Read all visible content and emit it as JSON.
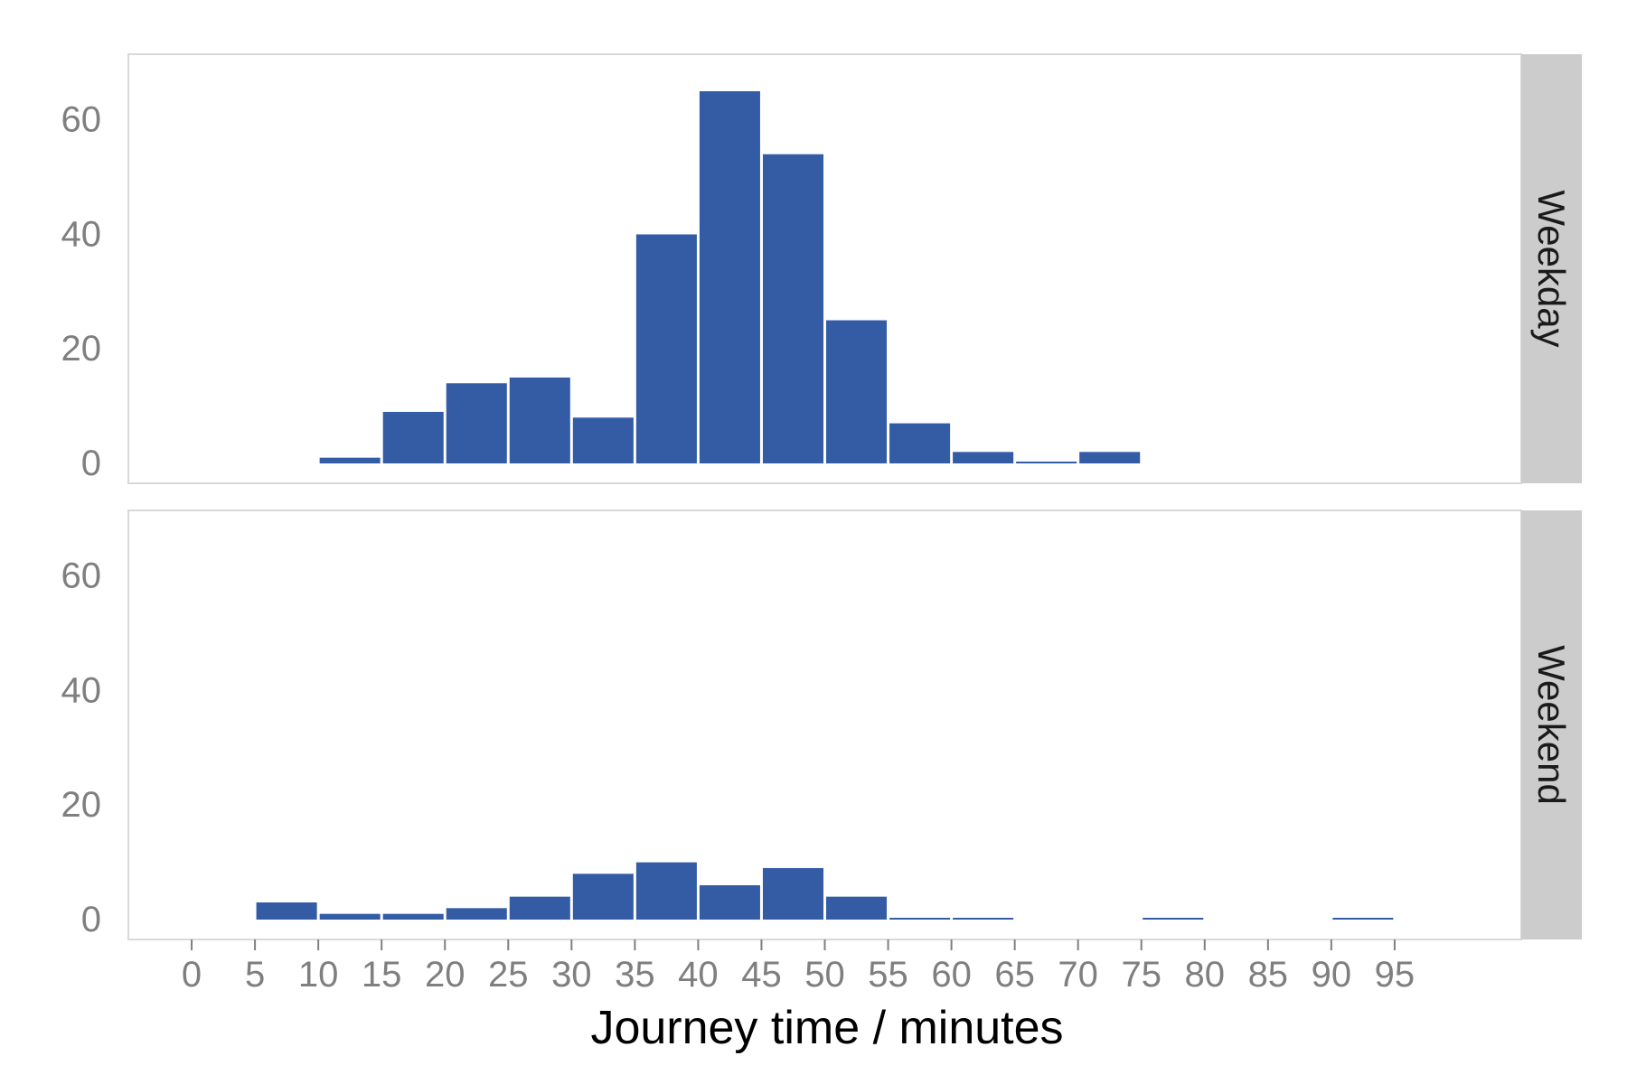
{
  "chart_data": {
    "type": "bar",
    "xlabel": "Journey time / minutes",
    "ylabel": "",
    "bin_width": 5,
    "xlim": [
      -5,
      105
    ],
    "ylim": [
      0,
      70
    ],
    "x_ticks": [
      0,
      5,
      10,
      15,
      20,
      25,
      30,
      35,
      40,
      45,
      50,
      55,
      60,
      65,
      70,
      75,
      80,
      85,
      90,
      95
    ],
    "y_ticks": [
      0,
      20,
      40,
      60
    ],
    "grid": false,
    "bar_color": "#335ca5",
    "strip_color": "#cccccc",
    "facets": [
      {
        "label": "Weekday",
        "bins": [
          {
            "start": 10,
            "end": 15,
            "count": 1
          },
          {
            "start": 15,
            "end": 20,
            "count": 9
          },
          {
            "start": 20,
            "end": 25,
            "count": 14
          },
          {
            "start": 25,
            "end": 30,
            "count": 15
          },
          {
            "start": 30,
            "end": 35,
            "count": 8
          },
          {
            "start": 35,
            "end": 40,
            "count": 40
          },
          {
            "start": 40,
            "end": 45,
            "count": 65
          },
          {
            "start": 45,
            "end": 50,
            "count": 54
          },
          {
            "start": 50,
            "end": 55,
            "count": 25
          },
          {
            "start": 55,
            "end": 60,
            "count": 7
          },
          {
            "start": 60,
            "end": 65,
            "count": 2
          },
          {
            "start": 65,
            "end": 70,
            "count": 0.3
          },
          {
            "start": 70,
            "end": 75,
            "count": 2
          }
        ]
      },
      {
        "label": "Weekend",
        "bins": [
          {
            "start": 5,
            "end": 10,
            "count": 3
          },
          {
            "start": 10,
            "end": 15,
            "count": 1
          },
          {
            "start": 15,
            "end": 20,
            "count": 1
          },
          {
            "start": 20,
            "end": 25,
            "count": 2
          },
          {
            "start": 25,
            "end": 30,
            "count": 4
          },
          {
            "start": 30,
            "end": 35,
            "count": 8
          },
          {
            "start": 35,
            "end": 40,
            "count": 10
          },
          {
            "start": 40,
            "end": 45,
            "count": 6
          },
          {
            "start": 45,
            "end": 50,
            "count": 9
          },
          {
            "start": 50,
            "end": 55,
            "count": 4
          },
          {
            "start": 55,
            "end": 60,
            "count": 0.3
          },
          {
            "start": 60,
            "end": 65,
            "count": 0.3
          },
          {
            "start": 75,
            "end": 80,
            "count": 0.3
          },
          {
            "start": 90,
            "end": 95,
            "count": 0.3
          }
        ]
      }
    ]
  }
}
